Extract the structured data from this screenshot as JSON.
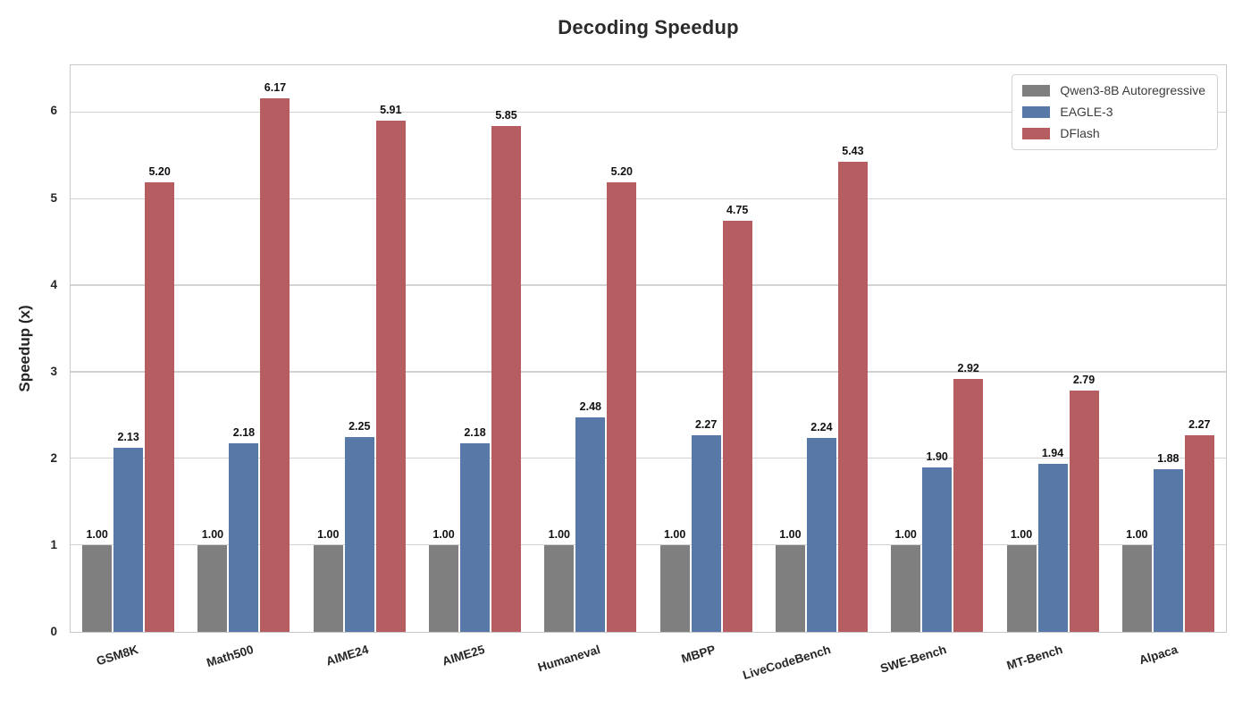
{
  "figure": {
    "title": "Decoding Speedup"
  },
  "chart_data": {
    "type": "bar",
    "title": "Decoding Speedup",
    "xlabel": "",
    "ylabel": "Speedup (x)",
    "ylim": [
      0,
      6.55
    ],
    "yticks": [
      0,
      1,
      2,
      3,
      4,
      5,
      6
    ],
    "grid": true,
    "legend_position": "upper right",
    "value_labels": "shown above bars, 2 decimal places",
    "categories": [
      "GSM8K",
      "Math500",
      "AIME24",
      "AIME25",
      "Humaneval",
      "MBPP",
      "LiveCodeBench",
      "SWE-Bench",
      "MT-Bench",
      "Alpaca"
    ],
    "series": [
      {
        "name": "Qwen3-8B Autoregressive",
        "color": "#7f7f7f",
        "values": [
          1.0,
          1.0,
          1.0,
          1.0,
          1.0,
          1.0,
          1.0,
          1.0,
          1.0,
          1.0
        ]
      },
      {
        "name": "EAGLE-3",
        "color": "#5878a7",
        "values": [
          2.13,
          2.18,
          2.25,
          2.18,
          2.48,
          2.27,
          2.24,
          1.9,
          1.94,
          1.88
        ]
      },
      {
        "name": "DFlash",
        "color": "#b55d61",
        "values": [
          5.2,
          6.17,
          5.91,
          5.85,
          5.2,
          4.75,
          5.43,
          2.92,
          2.79,
          2.27
        ]
      }
    ],
    "colors": {
      "grid": "#d2d2d2",
      "spine": "#c9c9c9",
      "text": "#262626",
      "title": "#2b2b2b"
    }
  }
}
